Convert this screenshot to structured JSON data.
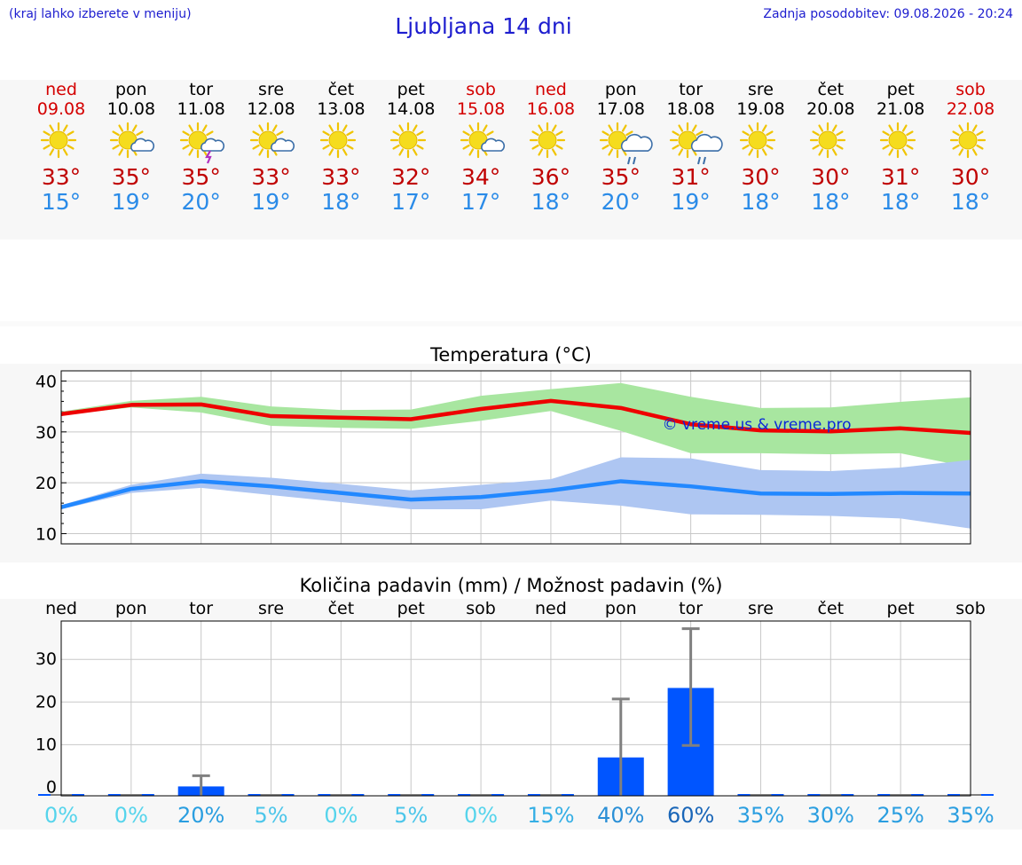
{
  "header": {
    "hint": "(kraj lahko izberete v meniju)",
    "title": "Ljubljana 14 dni",
    "updated": "Zadnja posodobitev: 09.08.2026 - 20:24"
  },
  "colors": {
    "title": "#1d1dcf",
    "weekend": "#d40000",
    "max": "#c00000",
    "min": "#2a8be8",
    "max_band": "#a8e6a0",
    "min_band": "#aec6f2",
    "precip_bar": "#0055ff",
    "max_line": "#ee0000",
    "min_line": "#2288ff"
  },
  "days": [
    {
      "name": "ned",
      "date": "09.08",
      "weekend": true,
      "icon": "sun-icon",
      "max": "33°",
      "min": "15°"
    },
    {
      "name": "pon",
      "date": "10.08",
      "weekend": false,
      "icon": "sun-cloud-icon",
      "max": "35°",
      "min": "19°"
    },
    {
      "name": "tor",
      "date": "11.08",
      "weekend": false,
      "icon": "sun-thunder-icon",
      "max": "35°",
      "min": "20°"
    },
    {
      "name": "sre",
      "date": "12.08",
      "weekend": false,
      "icon": "sun-cloud-icon",
      "max": "33°",
      "min": "19°"
    },
    {
      "name": "čet",
      "date": "13.08",
      "weekend": false,
      "icon": "sun-icon",
      "max": "33°",
      "min": "18°"
    },
    {
      "name": "pet",
      "date": "14.08",
      "weekend": false,
      "icon": "sun-icon",
      "max": "32°",
      "min": "17°"
    },
    {
      "name": "sob",
      "date": "15.08",
      "weekend": true,
      "icon": "sun-cloud-icon",
      "max": "34°",
      "min": "17°"
    },
    {
      "name": "ned",
      "date": "16.08",
      "weekend": true,
      "icon": "sun-icon",
      "max": "36°",
      "min": "18°"
    },
    {
      "name": "pon",
      "date": "17.08",
      "weekend": false,
      "icon": "sun-rain-icon",
      "max": "35°",
      "min": "20°"
    },
    {
      "name": "tor",
      "date": "18.08",
      "weekend": false,
      "icon": "sun-rain-icon",
      "max": "31°",
      "min": "19°"
    },
    {
      "name": "sre",
      "date": "19.08",
      "weekend": false,
      "icon": "sun-icon",
      "max": "30°",
      "min": "18°"
    },
    {
      "name": "čet",
      "date": "20.08",
      "weekend": false,
      "icon": "sun-icon",
      "max": "30°",
      "min": "18°"
    },
    {
      "name": "pet",
      "date": "21.08",
      "weekend": false,
      "icon": "sun-icon",
      "max": "31°",
      "min": "18°"
    },
    {
      "name": "sob",
      "date": "22.08",
      "weekend": true,
      "icon": "sun-icon",
      "max": "30°",
      "min": "18°"
    }
  ],
  "chart_data": [
    {
      "type": "line",
      "title": "Temperatura (°C)",
      "watermark": "© vreme.us & vreme.pro",
      "ylim": [
        8,
        42
      ],
      "yticks": [
        10,
        20,
        30,
        40
      ],
      "grid": true,
      "x": [
        0,
        1,
        2,
        3,
        4,
        5,
        6,
        7,
        8,
        9,
        10,
        11,
        12,
        13
      ],
      "series": [
        {
          "role": "max",
          "values": [
            33.5,
            35.3,
            35.4,
            33.1,
            32.8,
            32.5,
            34.5,
            36.1,
            34.7,
            31.5,
            30.3,
            30.1,
            30.7,
            29.8
          ],
          "color": "#ee0000"
        },
        {
          "role": "min",
          "values": [
            15.2,
            18.8,
            20.3,
            19.3,
            18.0,
            16.7,
            17.2,
            18.5,
            20.3,
            19.3,
            17.9,
            17.8,
            18.0,
            17.9
          ],
          "color": "#2288ff"
        }
      ],
      "bands": [
        {
          "role": "max-range",
          "low": [
            33.3,
            34.8,
            33.8,
            31.2,
            30.8,
            30.6,
            32.2,
            34.1,
            30.2,
            25.8,
            25.8,
            25.6,
            25.8,
            23.0
          ],
          "high": [
            34.0,
            36.1,
            36.9,
            35.0,
            34.3,
            34.4,
            37.1,
            38.4,
            39.6,
            36.9,
            34.7,
            34.8,
            35.9,
            36.8
          ],
          "color": "#a8e6a0"
        },
        {
          "role": "min-range",
          "low": [
            14.8,
            18.0,
            19.0,
            17.6,
            16.2,
            14.8,
            14.8,
            16.5,
            15.5,
            13.8,
            13.7,
            13.5,
            13.0,
            11.0
          ],
          "high": [
            15.6,
            19.6,
            21.8,
            21.0,
            19.8,
            18.5,
            19.6,
            20.7,
            25.0,
            24.8,
            22.5,
            22.3,
            23.0,
            24.5
          ],
          "color": "#aec6f2"
        }
      ]
    },
    {
      "type": "bar",
      "title": "Količina padavin (mm) / Možnost padavin (%)",
      "ylim": [
        -2,
        39
      ],
      "yticks": [
        0,
        10,
        20,
        30
      ],
      "grid": true,
      "categories": [
        "ned",
        "pon",
        "tor",
        "sre",
        "čet",
        "pet",
        "sob",
        "ned",
        "pon",
        "tor",
        "sre",
        "čet",
        "pet",
        "sob"
      ],
      "values": [
        0,
        0,
        0.2,
        0,
        0,
        0,
        0,
        0,
        7.0,
        23.3,
        0,
        0,
        0,
        0
      ],
      "error_low": [
        0,
        0,
        0,
        0,
        0,
        0,
        0,
        0,
        0,
        9.8,
        0,
        0,
        0,
        0
      ],
      "error_high": [
        0,
        0,
        2.7,
        0,
        0,
        0,
        0,
        0,
        20.7,
        37.2,
        0,
        0,
        0,
        0
      ],
      "chance": [
        "0%",
        "0%",
        "20%",
        "5%",
        "0%",
        "5%",
        "0%",
        "15%",
        "40%",
        "60%",
        "35%",
        "30%",
        "25%",
        "35%"
      ],
      "chance_colors": [
        "#55d4ec",
        "#55d4ec",
        "#2a9ee0",
        "#4cc6ea",
        "#55d4ec",
        "#4cc6ea",
        "#55d4ec",
        "#35afe5",
        "#2a8fd6",
        "#1a66b8",
        "#2a9ee0",
        "#2a9ee0",
        "#2a9ee0",
        "#2a9ee0"
      ]
    }
  ]
}
